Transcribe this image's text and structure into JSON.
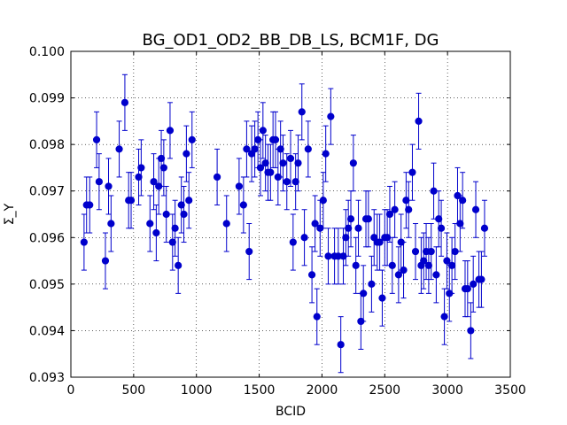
{
  "chart_data": {
    "type": "scatter",
    "title": "BG_OD1_OD2_BB_DB_LS, BCM1F, DG",
    "xlabel": "BCID",
    "ylabel": "Σ_Y",
    "xlim": [
      0,
      3500
    ],
    "ylim": [
      0.093,
      0.1
    ],
    "x_ticks": [
      "0",
      "500",
      "1000",
      "1500",
      "2000",
      "2500",
      "3000",
      "3500"
    ],
    "y_ticks": [
      "0.093",
      "0.094",
      "0.095",
      "0.096",
      "0.097",
      "0.098",
      "0.099",
      "0.100"
    ],
    "grid": true,
    "marker_color": "#0000cc",
    "error": 0.0006,
    "points": [
      [
        105,
        0.0959
      ],
      [
        125,
        0.0967
      ],
      [
        150,
        0.0967
      ],
      [
        205,
        0.0981
      ],
      [
        225,
        0.0972
      ],
      [
        275,
        0.0955
      ],
      [
        300,
        0.0971
      ],
      [
        320,
        0.0963
      ],
      [
        385,
        0.0979
      ],
      [
        430,
        0.0989
      ],
      [
        460,
        0.0968
      ],
      [
        480,
        0.0968
      ],
      [
        540,
        0.0973
      ],
      [
        560,
        0.0975
      ],
      [
        630,
        0.0963
      ],
      [
        660,
        0.0972
      ],
      [
        680,
        0.0961
      ],
      [
        700,
        0.0971
      ],
      [
        720,
        0.0977
      ],
      [
        740,
        0.0975
      ],
      [
        760,
        0.0965
      ],
      [
        790,
        0.0983
      ],
      [
        810,
        0.0959
      ],
      [
        830,
        0.0962
      ],
      [
        855,
        0.0954
      ],
      [
        880,
        0.0967
      ],
      [
        900,
        0.0965
      ],
      [
        920,
        0.0978
      ],
      [
        940,
        0.0968
      ],
      [
        965,
        0.0981
      ],
      [
        1165,
        0.0973
      ],
      [
        1240,
        0.0963
      ],
      [
        1340,
        0.0971
      ],
      [
        1375,
        0.0967
      ],
      [
        1400,
        0.0979
      ],
      [
        1420,
        0.0957
      ],
      [
        1440,
        0.0978
      ],
      [
        1465,
        0.0979
      ],
      [
        1490,
        0.0981
      ],
      [
        1510,
        0.0975
      ],
      [
        1530,
        0.0983
      ],
      [
        1550,
        0.0976
      ],
      [
        1570,
        0.0974
      ],
      [
        1590,
        0.0974
      ],
      [
        1610,
        0.0981
      ],
      [
        1630,
        0.0981
      ],
      [
        1650,
        0.0973
      ],
      [
        1670,
        0.0979
      ],
      [
        1690,
        0.0976
      ],
      [
        1720,
        0.0972
      ],
      [
        1750,
        0.0977
      ],
      [
        1770,
        0.0959
      ],
      [
        1790,
        0.0972
      ],
      [
        1810,
        0.0976
      ],
      [
        1840,
        0.0987
      ],
      [
        1860,
        0.096
      ],
      [
        1890,
        0.0979
      ],
      [
        1920,
        0.0952
      ],
      [
        1945,
        0.0963
      ],
      [
        1960,
        0.0943
      ],
      [
        1985,
        0.0962
      ],
      [
        2010,
        0.0968
      ],
      [
        2030,
        0.0978
      ],
      [
        2050,
        0.0956
      ],
      [
        2070,
        0.0986
      ],
      [
        2100,
        0.0956
      ],
      [
        2130,
        0.0956
      ],
      [
        2150,
        0.0937
      ],
      [
        2170,
        0.0956
      ],
      [
        2190,
        0.096
      ],
      [
        2210,
        0.0962
      ],
      [
        2230,
        0.0964
      ],
      [
        2250,
        0.0976
      ],
      [
        2270,
        0.0954
      ],
      [
        2290,
        0.0962
      ],
      [
        2310,
        0.0942
      ],
      [
        2330,
        0.0948
      ],
      [
        2350,
        0.0964
      ],
      [
        2370,
        0.0964
      ],
      [
        2395,
        0.095
      ],
      [
        2415,
        0.096
      ],
      [
        2440,
        0.0959
      ],
      [
        2460,
        0.0959
      ],
      [
        2480,
        0.0947
      ],
      [
        2500,
        0.096
      ],
      [
        2520,
        0.096
      ],
      [
        2540,
        0.0965
      ],
      [
        2560,
        0.0954
      ],
      [
        2580,
        0.0966
      ],
      [
        2610,
        0.0952
      ],
      [
        2630,
        0.0959
      ],
      [
        2650,
        0.0953
      ],
      [
        2670,
        0.0968
      ],
      [
        2690,
        0.0966
      ],
      [
        2720,
        0.0974
      ],
      [
        2745,
        0.0957
      ],
      [
        2770,
        0.0985
      ],
      [
        2790,
        0.0954
      ],
      [
        2810,
        0.0955
      ],
      [
        2830,
        0.0957
      ],
      [
        2850,
        0.0954
      ],
      [
        2870,
        0.0957
      ],
      [
        2890,
        0.097
      ],
      [
        2910,
        0.0952
      ],
      [
        2930,
        0.0964
      ],
      [
        2950,
        0.0962
      ],
      [
        2975,
        0.0943
      ],
      [
        2995,
        0.0955
      ],
      [
        3015,
        0.0948
      ],
      [
        3035,
        0.0954
      ],
      [
        3060,
        0.0957
      ],
      [
        3080,
        0.0969
      ],
      [
        3100,
        0.0963
      ],
      [
        3120,
        0.0968
      ],
      [
        3140,
        0.0949
      ],
      [
        3160,
        0.0949
      ],
      [
        3185,
        0.094
      ],
      [
        3205,
        0.095
      ],
      [
        3225,
        0.0966
      ],
      [
        3250,
        0.0951
      ],
      [
        3270,
        0.0951
      ],
      [
        3295,
        0.0962
      ]
    ]
  }
}
